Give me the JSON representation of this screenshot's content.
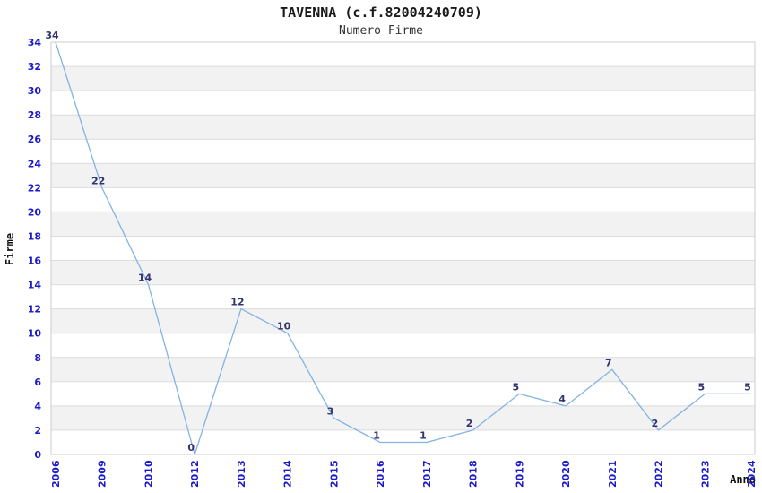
{
  "header": {
    "title": "TAVENNA (c.f.82004240709)",
    "subtitle": "Numero Firme"
  },
  "chart_data": {
    "type": "line",
    "title": "TAVENNA (c.f.82004240709)",
    "subtitle": "Numero Firme",
    "xlabel": "Anno",
    "ylabel": "Firme",
    "categories": [
      "2006",
      "2009",
      "2010",
      "2012",
      "2013",
      "2014",
      "2015",
      "2016",
      "2017",
      "2018",
      "2019",
      "2020",
      "2021",
      "2022",
      "2023",
      "2024"
    ],
    "values": [
      34,
      22,
      14,
      0,
      12,
      10,
      3,
      1,
      1,
      2,
      5,
      4,
      7,
      2,
      5,
      5
    ],
    "ylim": [
      0,
      34
    ],
    "ytick_step": 2,
    "grid": true,
    "legend": false,
    "band_rows": true,
    "data_labels_shown": true,
    "x_tick_rotation": -90
  },
  "colors": {
    "background": "#ffffff",
    "series_line": "#82b3e4",
    "tick_label": "#1a1acc",
    "data_label": "#333370",
    "band_fill": "#f2f2f2",
    "band_alt_fill": "#ffffff",
    "gridline": "#dcdcdc",
    "plot_border": "#cccccc",
    "title_text": "#1a1a1a",
    "subtitle_text": "#333333",
    "axis_title_text": "#111111"
  }
}
